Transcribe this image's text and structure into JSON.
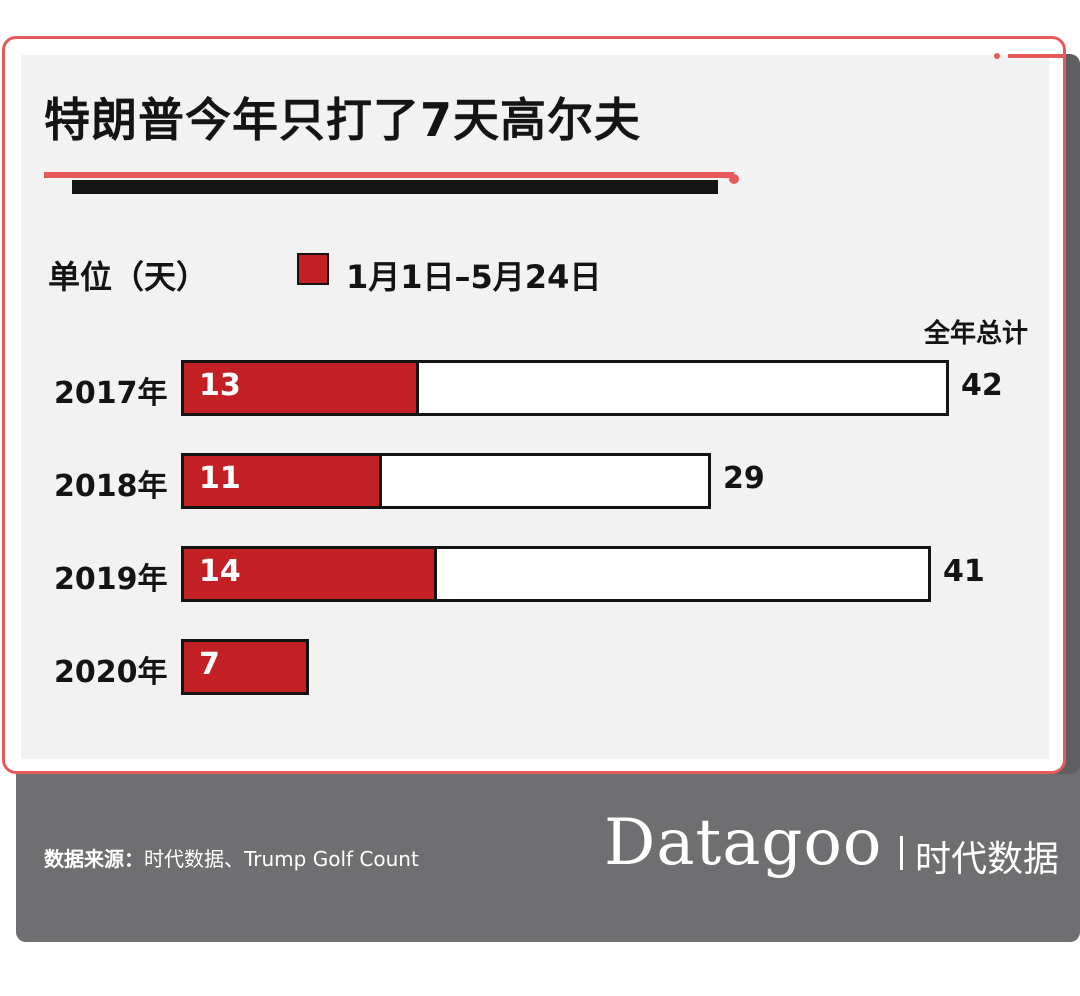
{
  "title": "特朗普今年只打了7天高尔夫",
  "unit_label": "单位（天）",
  "colors": {
    "accent": "#e85a5a",
    "part": "#c32026",
    "ink": "#141414",
    "footer": "#6f6f71"
  },
  "chart_data": {
    "type": "bar",
    "orientation": "horizontal",
    "title": "特朗普今年只打了7天高尔夫",
    "unit": "单位（天）",
    "legend": [
      "1月1日–5月24日"
    ],
    "total_header": "全年总计",
    "categories": [
      "2017年",
      "2018年",
      "2019年",
      "2020年"
    ],
    "series": [
      {
        "name": "1月1日–5月24日",
        "values": [
          13,
          11,
          14,
          7
        ]
      },
      {
        "name": "全年总计",
        "values": [
          42,
          29,
          41,
          null
        ]
      }
    ],
    "xlim": [
      0,
      42
    ],
    "grid": false
  },
  "footer": {
    "source_label": "数据来源：",
    "source_text": "时代数据、Trump Golf Count",
    "brand": "Datagoo",
    "brand_cn": "时代数据"
  }
}
